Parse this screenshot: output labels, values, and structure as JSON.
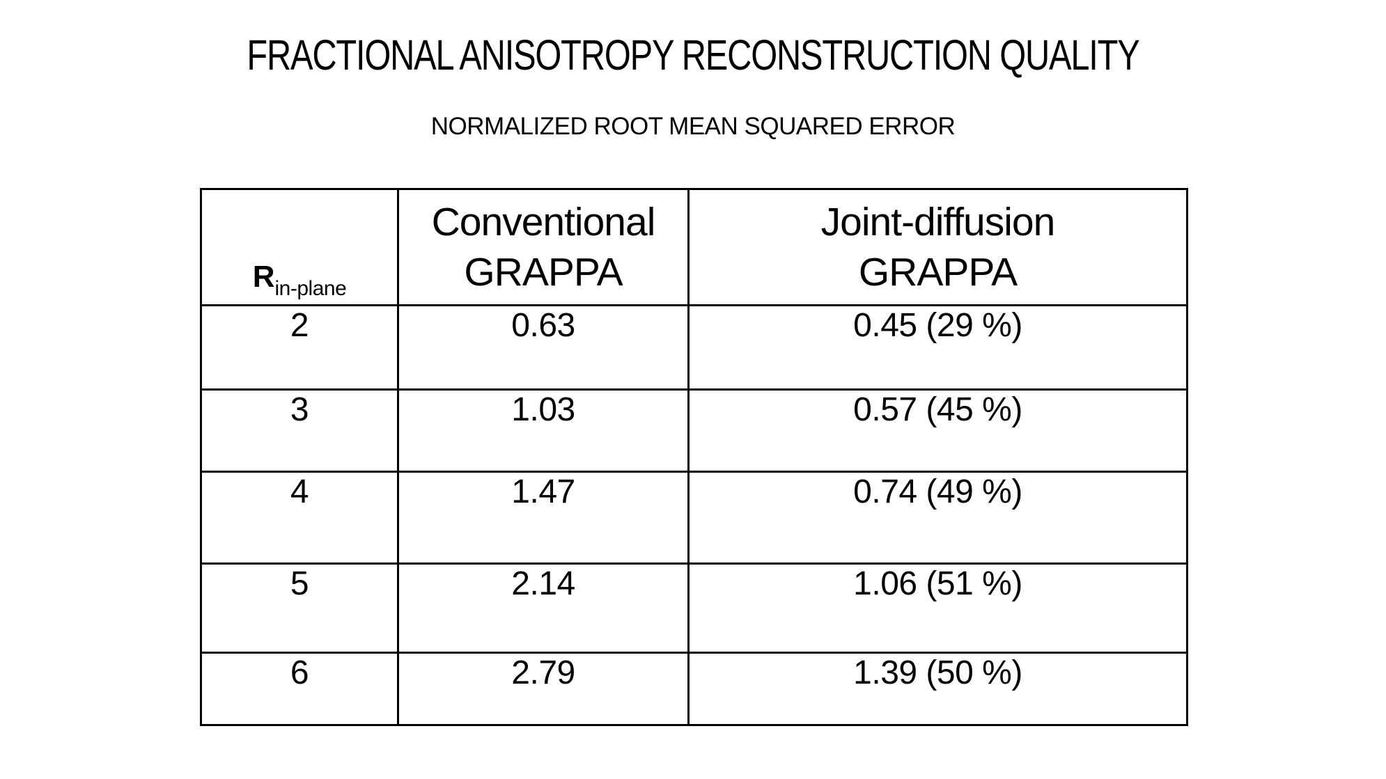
{
  "slide": {
    "title": "FRACTIONAL ANISOTROPY RECONSTRUCTION QUALITY",
    "subtitle": "NORMALIZED ROOT MEAN SQUARED ERROR"
  },
  "table": {
    "header": {
      "r_symbol": "R",
      "r_subscript": "in-plane",
      "col2_line1": "Conventional",
      "col2_line2": "GRAPPA",
      "col3_line1": "Joint-diffusion",
      "col3_line2": "GRAPPA"
    },
    "rows": [
      {
        "r": "2",
        "conventional": "0.63",
        "joint": "0.45 (29 %)"
      },
      {
        "r": "3",
        "conventional": "1.03",
        "joint": "0.57 (45 %)"
      },
      {
        "r": "4",
        "conventional": "1.47",
        "joint": "0.74 (49 %)"
      },
      {
        "r": "5",
        "conventional": "2.14",
        "joint": "1.06 (51 %)"
      },
      {
        "r": "6",
        "conventional": "2.79",
        "joint": "1.39 (50 %)"
      }
    ]
  },
  "colors": {
    "background": "#ffffff",
    "text": "#000000",
    "border": "#000000"
  },
  "chart_data": {
    "type": "table",
    "title": "FRACTIONAL ANISOTROPY RECONSTRUCTION QUALITY",
    "subtitle": "NORMALIZED ROOT MEAN SQUARED ERROR",
    "columns": [
      "R in-plane",
      "Conventional GRAPPA",
      "Joint-diffusion GRAPPA"
    ],
    "rows": [
      [
        "2",
        "0.63",
        "0.45 (29 %)"
      ],
      [
        "3",
        "1.03",
        "0.57 (45 %)"
      ],
      [
        "4",
        "1.47",
        "0.74 (49 %)"
      ],
      [
        "5",
        "2.14",
        "1.06 (51 %)"
      ],
      [
        "6",
        "2.79",
        "1.39 (50 %)"
      ]
    ],
    "numeric": {
      "r_in_plane": [
        2,
        3,
        4,
        5,
        6
      ],
      "conventional_grappa_nrmse": [
        0.63,
        1.03,
        1.47,
        2.14,
        2.79
      ],
      "joint_diffusion_grappa_nrmse": [
        0.45,
        0.57,
        0.74,
        1.06,
        1.39
      ],
      "improvement_percent": [
        29,
        45,
        49,
        51,
        50
      ]
    }
  }
}
